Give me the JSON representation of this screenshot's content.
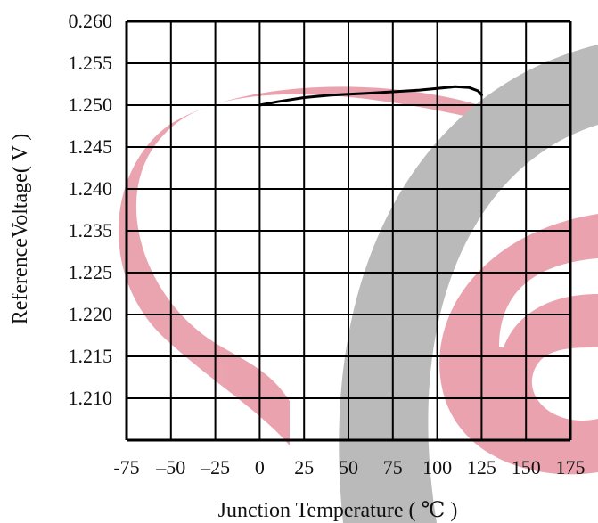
{
  "chart_data": {
    "type": "line",
    "title": "",
    "xlabel": "Junction Temperature ( ℃ )",
    "ylabel": "ReferenceVoltage( V )",
    "x_ticks": [
      "-75",
      "–50",
      "–25",
      "0",
      "25",
      "50",
      "75",
      "100",
      "125",
      "150",
      "175"
    ],
    "y_ticks": [
      "0.260",
      "1.255",
      "1.250",
      "1.245",
      "1.240",
      "1.235",
      "1.225",
      "1.220",
      "1.215",
      "1.210"
    ],
    "xlim": [
      -75,
      175
    ],
    "grid": true,
    "series": [
      {
        "x": [
          0,
          10,
          25,
          40,
          50,
          60,
          75,
          90,
          100,
          110,
          118,
          123,
          125
        ],
        "y": [
          1.25,
          1.2504,
          1.2509,
          1.2512,
          1.2513,
          1.2514,
          1.2516,
          1.2518,
          1.252,
          1.2522,
          1.2521,
          1.2517,
          1.2512
        ],
        "color": "#000000"
      }
    ]
  },
  "watermark": {
    "colors": {
      "red": "#e89aa6",
      "gray": "#b3b3b3"
    }
  }
}
